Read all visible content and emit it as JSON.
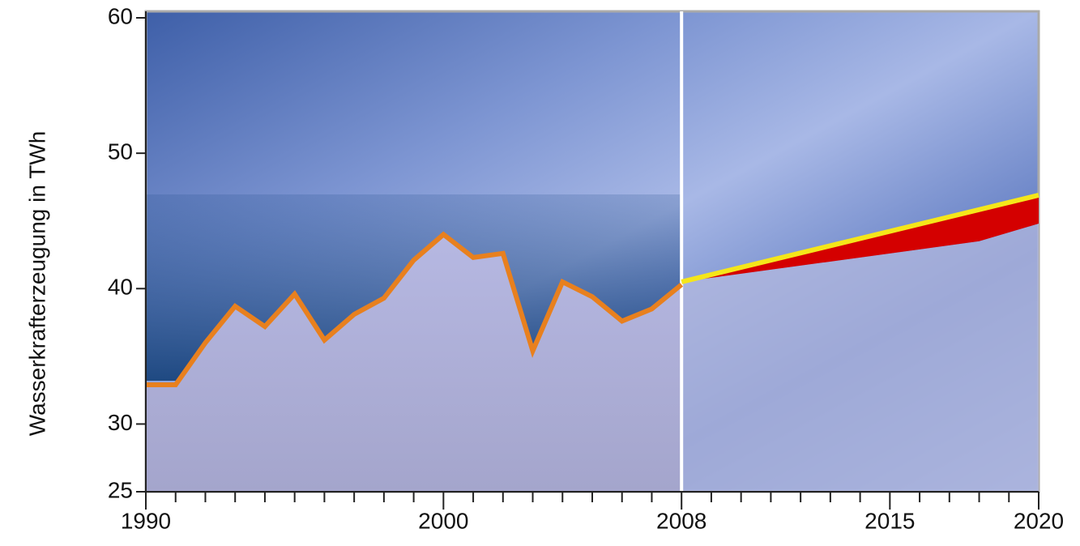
{
  "chart_data": {
    "type": "line",
    "y_label": "Wasserkrafterzeugung in TWh",
    "ylim": [
      25,
      60
    ],
    "yticks": [
      25,
      30,
      40,
      50,
      60
    ],
    "xlim": [
      1990,
      2020
    ],
    "xticks": [
      1990,
      2000,
      2008,
      2015,
      2020
    ],
    "xminorticks": [
      1991,
      1992,
      1993,
      1994,
      1995,
      1996,
      1997,
      1998,
      1999,
      2001,
      2002,
      2003,
      2004,
      2005,
      2006,
      2007,
      2009,
      2010,
      2011,
      2012,
      2013,
      2014,
      2016,
      2017,
      2018,
      2019
    ],
    "vline": 2008,
    "series": [
      {
        "color": "#e8801e",
        "x": [
          1990,
          1991,
          1992,
          1993,
          1994,
          1995,
          1996,
          1997,
          1998,
          1999,
          2000,
          2001,
          2002,
          2003,
          2004,
          2005,
          2006,
          2007,
          2008
        ],
        "values": [
          32.9,
          32.9,
          36.0,
          38.7,
          37.2,
          39.6,
          36.2,
          38.1,
          39.3,
          42.1,
          44.0,
          42.3,
          42.6,
          35.4,
          40.5,
          39.4,
          37.6,
          38.5,
          40.3
        ]
      },
      {
        "color": "#f5e61a",
        "x": [
          2008,
          2020
        ],
        "values": [
          40.5,
          46.9
        ]
      },
      {
        "color": "#d40000",
        "x": [
          2008,
          2018,
          2020
        ],
        "values": [
          40.5,
          43.5,
          44.8
        ]
      }
    ]
  }
}
